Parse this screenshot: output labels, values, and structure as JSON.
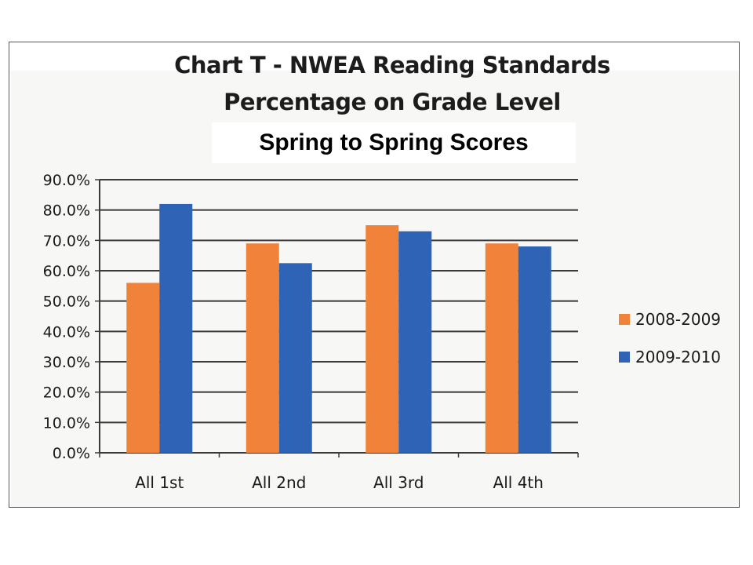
{
  "chart_data": {
    "type": "bar",
    "title": "Chart T - NWEA Reading Standards",
    "title_line2": "Percentage on Grade Level",
    "subtitle": "Spring to Spring Scores",
    "categories": [
      "All 1st",
      "All 2nd",
      "All 3rd",
      "All 4th"
    ],
    "series": [
      {
        "name": "2008-2009",
        "color": "#f0823a",
        "values": [
          56,
          69,
          75,
          69
        ]
      },
      {
        "name": "2009-2010",
        "color": "#2f63b5",
        "values": [
          82,
          62.5,
          73,
          68
        ]
      }
    ],
    "y_ticks": [
      "0.0%",
      "10.0%",
      "20.0%",
      "30.0%",
      "40.0%",
      "50.0%",
      "60.0%",
      "70.0%",
      "80.0%",
      "90.0%"
    ],
    "ylim": [
      0,
      90
    ],
    "grid": true,
    "legend_position": "right"
  }
}
